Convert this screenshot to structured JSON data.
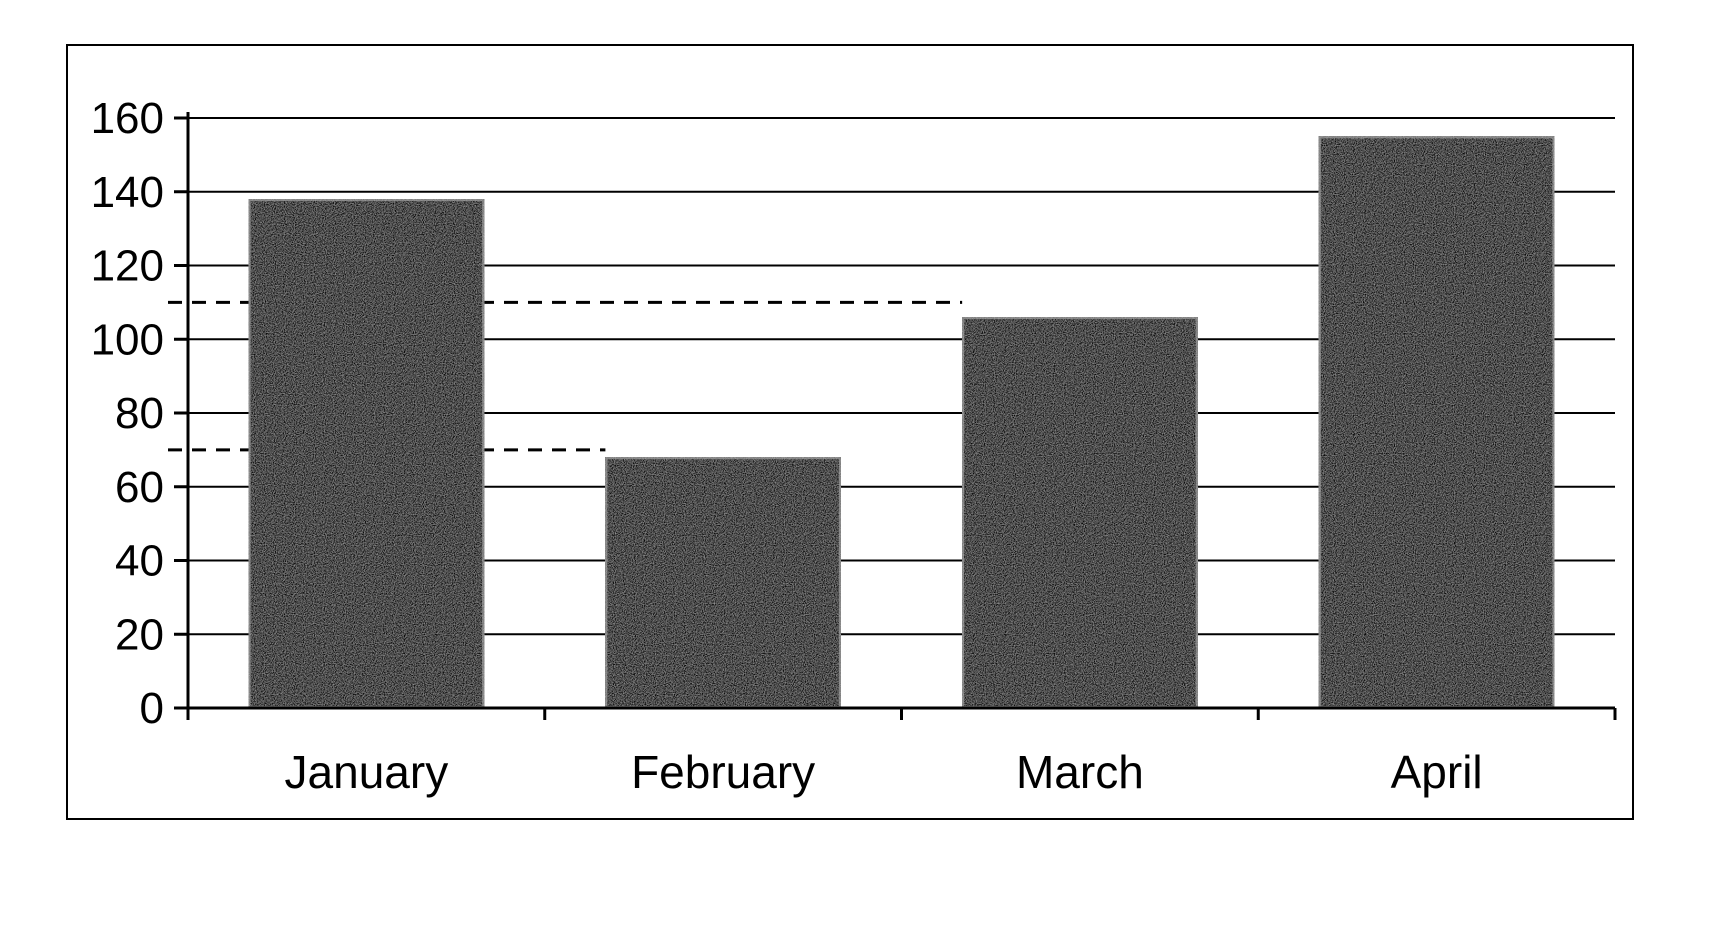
{
  "chart_data": {
    "type": "bar",
    "categories": [
      "January",
      "February",
      "March",
      "April"
    ],
    "values": [
      138,
      68,
      106,
      155
    ],
    "title": "",
    "xlabel": "",
    "ylabel": "",
    "ylim": [
      0,
      160
    ],
    "yticks": [
      "0",
      "20",
      "40",
      "60",
      "80",
      "100",
      "120",
      "140",
      "160"
    ],
    "grid": true,
    "legend": "none",
    "reference_lines": [
      {
        "value": 110,
        "style": "dashed",
        "from_category": 0,
        "to_category": 2
      },
      {
        "value": 70,
        "style": "dashed",
        "from_category": 0,
        "to_category": 1
      }
    ],
    "colors": {
      "bar": "#0d0d0d",
      "bar_edge": "#7a7a7a",
      "grid": "#000000",
      "axis": "#000000"
    }
  }
}
